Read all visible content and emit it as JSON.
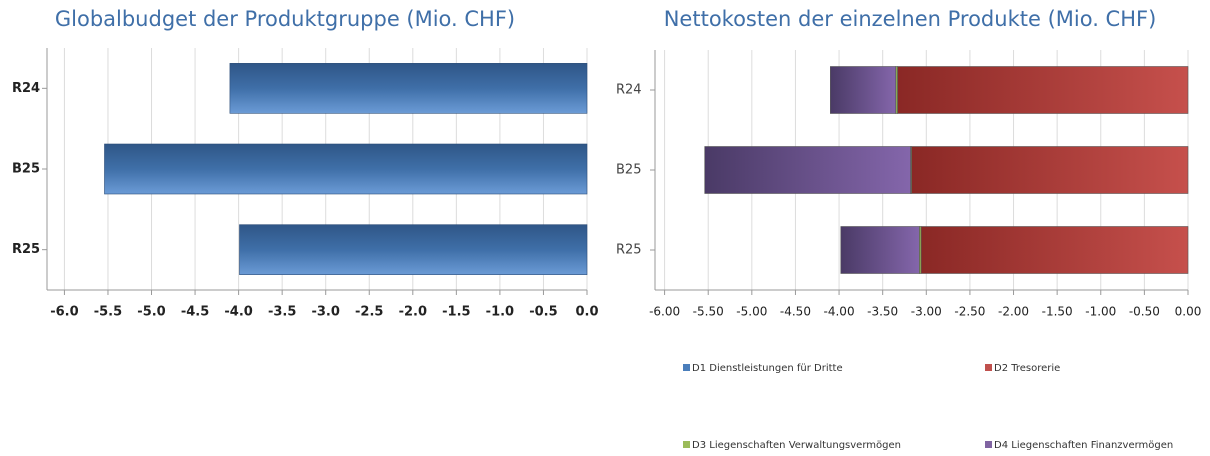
{
  "chart_data": [
    {
      "type": "bar",
      "orientation": "horizontal",
      "title": "Globalbudget der Produktgruppe (Mio. CHF)",
      "categories": [
        "R24",
        "B25",
        "R25"
      ],
      "values": [
        -4.1,
        -5.54,
        -3.99
      ],
      "color": "#4f81bd",
      "xlim": [
        -6.2,
        0
      ],
      "xticks": [
        {
          "value": -6,
          "label": "-6.0"
        },
        -5.5,
        {
          "value": -5,
          "label": "-5.0"
        },
        -4.5,
        {
          "value": -4,
          "label": "-4.0"
        },
        -3.5,
        {
          "value": -3,
          "label": "-3.0"
        },
        -2.5,
        {
          "value": -2,
          "label": "-2.0"
        },
        -1.5,
        {
          "value": -1,
          "label": "-1.0"
        },
        -0.5,
        {
          "value": 0,
          "label": "0.0"
        }
      ],
      "grid": true
    },
    {
      "type": "stacked_bar",
      "orientation": "horizontal",
      "title": "Nettokosten der einzelnen Produkte (Mio. CHF)",
      "categories": [
        "R24",
        "B25",
        "R25"
      ],
      "series": [
        {
          "name": "D1 Dienstleistungen für Dritte",
          "color": "#4a7ebb",
          "values": [
            0,
            0,
            0
          ]
        },
        {
          "name": "D2 Tresorerie",
          "color": "#c0504d",
          "values": [
            -3.33,
            -3.17,
            -3.06
          ]
        },
        {
          "name": "D3 Liegenschaften Verwaltungsvermögen",
          "color": "#9bbb59",
          "values": [
            -0.02,
            -0.01,
            -0.02
          ]
        },
        {
          "name": "D4 Liegenschaften Finanzvermögen",
          "color": "#8064a2",
          "values": [
            -0.75,
            -2.36,
            -0.9
          ]
        }
      ],
      "xlim": [
        -6.11,
        0
      ],
      "xticks": [
        {
          "value": -6,
          "label": "-6.00"
        },
        {
          "value": -5.5,
          "label": "-5.50"
        },
        {
          "value": -5,
          "label": "-5.00"
        },
        {
          "value": -4.5,
          "label": "-4.50"
        },
        {
          "value": -4,
          "label": "-4.00"
        },
        {
          "value": -3.5,
          "label": "-3.50"
        },
        {
          "value": -3,
          "label": "-3.00"
        },
        {
          "value": -2.5,
          "label": "-2.50"
        },
        {
          "value": -2,
          "label": "-2.00"
        },
        {
          "value": -1.5,
          "label": "-1.50"
        },
        {
          "value": -1,
          "label": "-1.00"
        },
        {
          "value": -0.5,
          "label": "-0.50"
        },
        {
          "value": 0,
          "label": "0.00"
        }
      ],
      "grid": true,
      "legend": "bottom"
    }
  ]
}
